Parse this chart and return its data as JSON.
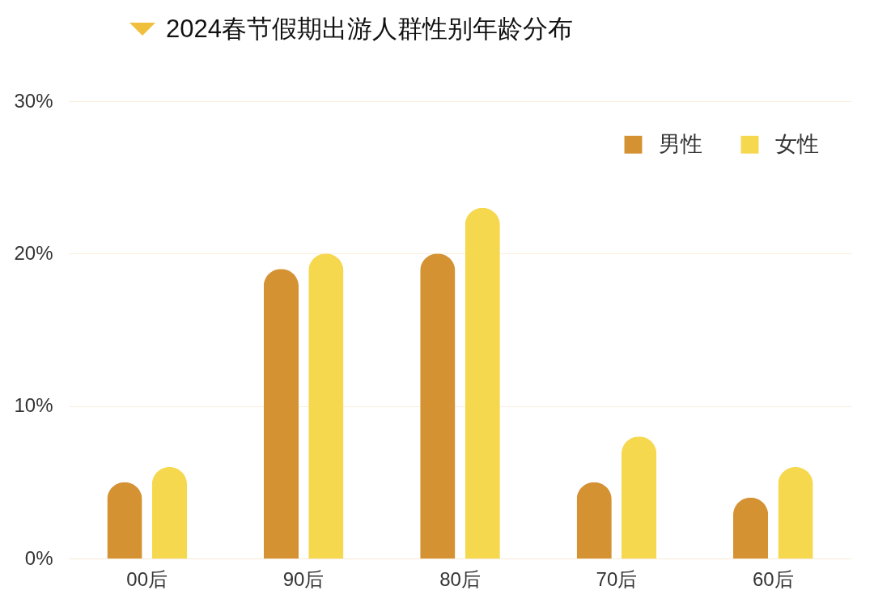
{
  "chart_data": {
    "type": "bar",
    "title": "2024春节假期出游人群性别年龄分布",
    "categories": [
      "00后",
      "90后",
      "80后",
      "70后",
      "60后"
    ],
    "series": [
      {
        "name": "男性",
        "color": "#d49233",
        "values": [
          5,
          19,
          20,
          5,
          4
        ]
      },
      {
        "name": "女性",
        "color": "#f6d84f",
        "values": [
          6,
          20,
          23,
          8,
          6
        ]
      }
    ],
    "ylim": [
      0,
      30
    ],
    "yticks": [
      {
        "value": 0,
        "label": "0%"
      },
      {
        "value": 10,
        "label": "10%"
      },
      {
        "value": 20,
        "label": "20%"
      },
      {
        "value": 30,
        "label": "30%"
      }
    ],
    "grid": "y",
    "legend": "top right"
  }
}
